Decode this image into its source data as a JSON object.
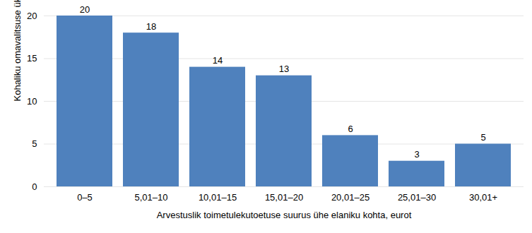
{
  "chart_data": {
    "type": "bar",
    "x_label": "Arvestuslik toimetulekutoetuse suurus ühe elaniku kohta, eurot",
    "y_label": "Kohaliku omavalitsuse üksuste arv",
    "categories": [
      "0–5",
      "5,01–10",
      "10,01–15",
      "15,01–20",
      "20,01–25",
      "25,01–30",
      "30,01+"
    ],
    "values": [
      20,
      18,
      14,
      13,
      6,
      3,
      5
    ],
    "color": "#4f81bd",
    "ylim": [
      0,
      20
    ],
    "yticks": [
      0,
      5,
      10,
      15,
      20
    ],
    "grid": true,
    "data_labels": true
  }
}
